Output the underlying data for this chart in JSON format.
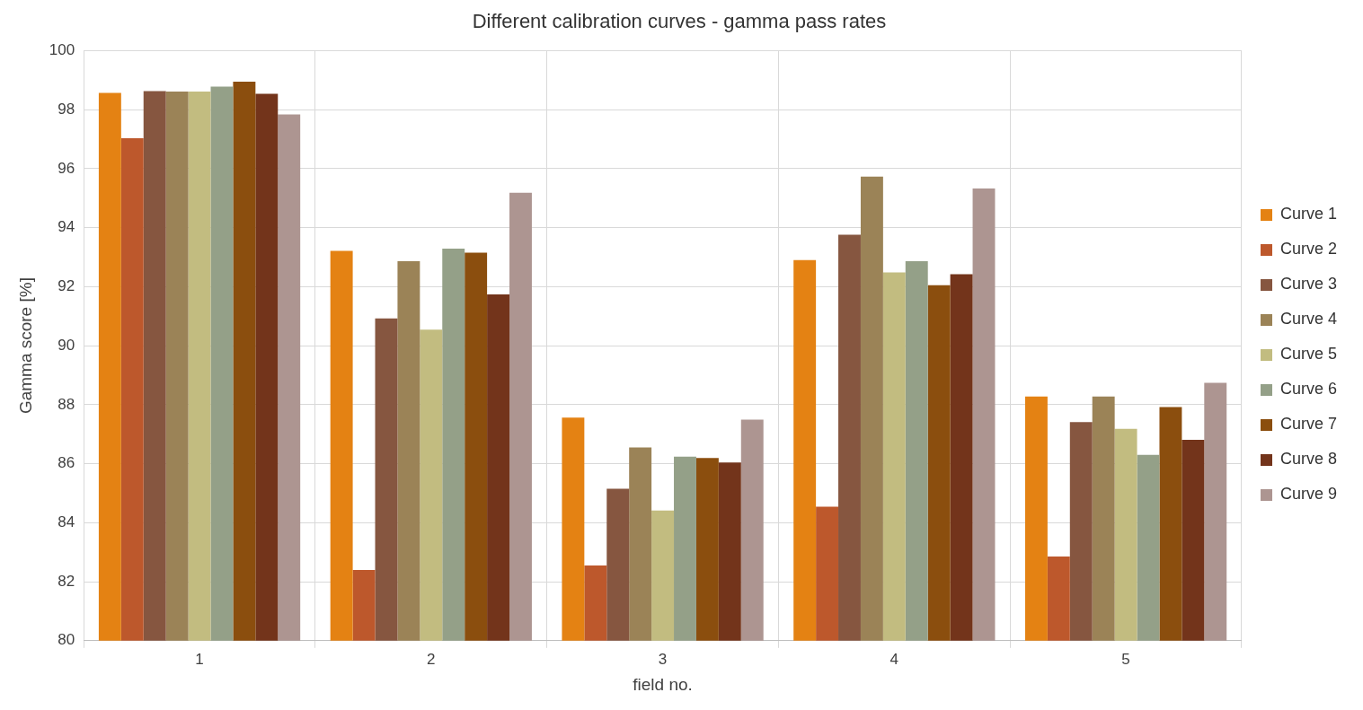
{
  "chart_data": {
    "type": "bar",
    "title": "Different calibration curves - gamma pass rates",
    "xlabel": "field no.",
    "ylabel": "Gamma score [%]",
    "categories": [
      "1",
      "2",
      "3",
      "4",
      "5"
    ],
    "series": [
      {
        "name": "Curve 1",
        "color": "#e48213",
        "values": [
          98.57,
          93.21,
          87.56,
          92.9,
          88.28
        ]
      },
      {
        "name": "Curve 2",
        "color": "#bd582c",
        "values": [
          97.03,
          82.4,
          82.55,
          84.54,
          82.85
        ]
      },
      {
        "name": "Curve 3",
        "color": "#865640",
        "values": [
          98.63,
          90.92,
          85.15,
          93.76,
          87.41
        ]
      },
      {
        "name": "Curve 4",
        "color": "#9b8357",
        "values": [
          98.61,
          92.86,
          86.55,
          95.73,
          88.28
        ]
      },
      {
        "name": "Curve 5",
        "color": "#c2bc80",
        "values": [
          98.61,
          90.54,
          84.41,
          92.48,
          87.18
        ]
      },
      {
        "name": "Curve 6",
        "color": "#94a088",
        "values": [
          98.78,
          93.29,
          86.24,
          92.86,
          86.3
        ]
      },
      {
        "name": "Curve 7",
        "color": "#8b4e0e",
        "values": [
          98.95,
          93.15,
          86.19,
          92.05,
          87.92
        ]
      },
      {
        "name": "Curve 8",
        "color": "#73341b",
        "values": [
          98.54,
          91.74,
          86.04,
          92.42,
          86.81
        ]
      },
      {
        "name": "Curve 9",
        "color": "#ad9591",
        "values": [
          97.84,
          95.18,
          87.49,
          95.33,
          88.74
        ]
      }
    ],
    "ylim": [
      80,
      100
    ],
    "yticks": [
      80,
      82,
      84,
      86,
      88,
      90,
      92,
      94,
      96,
      98,
      100
    ],
    "grid": true,
    "legend": "right"
  }
}
